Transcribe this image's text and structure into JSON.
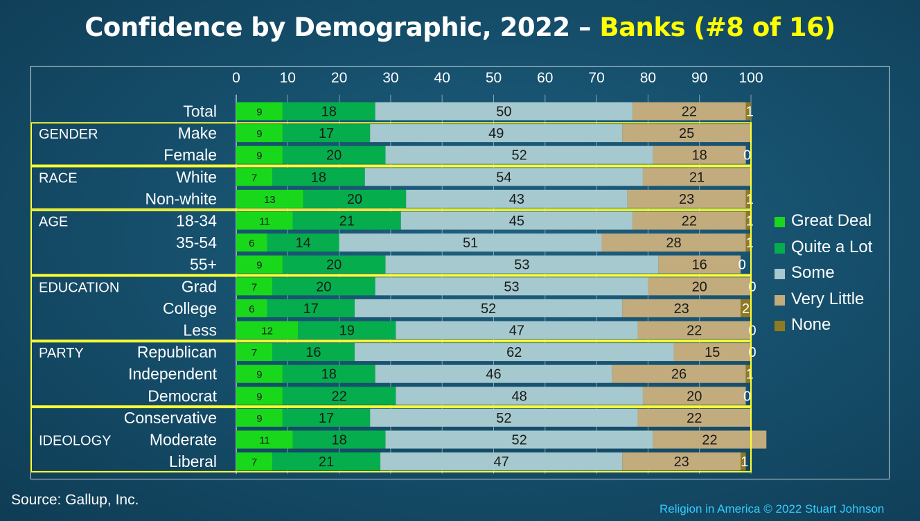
{
  "title": {
    "main": "Confidence by Demographic, 2022 – ",
    "accent": "Banks (#8 of 16)"
  },
  "source": "Source: Gallup, Inc.",
  "credit": "Religion in America © 2022 Stuart Johnson",
  "colors": {
    "great_deal": "#19d81b",
    "quite_a_lot": "#06ad4d",
    "some": "#a5c9ce",
    "very_little": "#c2ab7d",
    "none": "#8e7a23",
    "group_border": "#ffff33"
  },
  "legend": [
    {
      "label": "Great Deal",
      "color": "#19d81b"
    },
    {
      "label": "Quite a Lot",
      "color": "#06ad4d"
    },
    {
      "label": "Some",
      "color": "#a5c9ce"
    },
    {
      "label": "Very Little",
      "color": "#c2ab7d"
    },
    {
      "label": "None",
      "color": "#8e7a23"
    }
  ],
  "chart_data": {
    "type": "bar",
    "orientation": "horizontal",
    "stacked": true,
    "xlim": [
      0,
      100
    ],
    "xticks": [
      0,
      10,
      20,
      30,
      40,
      50,
      60,
      70,
      80,
      90,
      100
    ],
    "categories": [
      "Total",
      "Make",
      "Female",
      "White",
      "Non-white",
      "18-34",
      "35-54",
      "55+",
      "Grad",
      "College",
      "Less",
      "Republican",
      "Independent",
      "Democrat",
      "Conservative",
      "Moderate",
      "Liberal"
    ],
    "groups": [
      {
        "label": "GENDER",
        "rows": [
          "Make",
          "Female"
        ]
      },
      {
        "label": "RACE",
        "rows": [
          "White",
          "Non-white"
        ]
      },
      {
        "label": "AGE",
        "rows": [
          "18-34",
          "35-54",
          "55+"
        ]
      },
      {
        "label": "EDUCATION",
        "rows": [
          "Grad",
          "College",
          "Less"
        ]
      },
      {
        "label": "PARTY",
        "rows": [
          "Republican",
          "Independent",
          "Democrat"
        ]
      },
      {
        "label": "IDEOLOGY",
        "rows": [
          "Conservative",
          "Moderate",
          "Liberal"
        ]
      }
    ],
    "series": [
      {
        "name": "Great Deal",
        "values": [
          9,
          9,
          9,
          7,
          13,
          11,
          6,
          9,
          7,
          6,
          12,
          7,
          9,
          9,
          9,
          11,
          7
        ]
      },
      {
        "name": "Quite a Lot",
        "values": [
          18,
          17,
          20,
          18,
          20,
          21,
          14,
          20,
          20,
          17,
          19,
          16,
          18,
          22,
          17,
          18,
          21
        ]
      },
      {
        "name": "Some",
        "values": [
          50,
          49,
          52,
          54,
          43,
          45,
          51,
          53,
          53,
          52,
          47,
          62,
          46,
          48,
          52,
          52,
          47
        ]
      },
      {
        "name": "Very Little",
        "values": [
          22,
          25,
          18,
          21,
          23,
          22,
          28,
          16,
          20,
          23,
          22,
          15,
          26,
          20,
          22,
          22,
          23
        ]
      },
      {
        "name": "None",
        "values": [
          1,
          null,
          0,
          null,
          1,
          1,
          1,
          0,
          0,
          2,
          0,
          0,
          1,
          0,
          null,
          null,
          1
        ]
      }
    ],
    "grid": true
  }
}
